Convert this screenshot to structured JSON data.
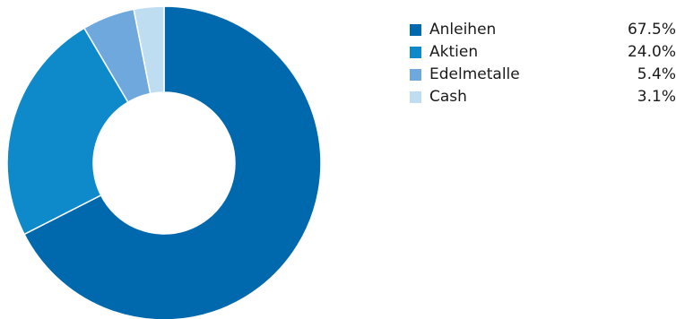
{
  "chart_data": {
    "type": "pie",
    "variant": "donut",
    "categories": [
      "Anleihen",
      "Aktien",
      "Edelmetalle",
      "Cash"
    ],
    "values": [
      67.5,
      24.0,
      5.4,
      3.1
    ],
    "value_labels": [
      "67.5%",
      "24.0%",
      "5.4%",
      "3.1%"
    ],
    "colors": [
      "#0068AD",
      "#0E8ACB",
      "#6FA8DC",
      "#BFDDF0"
    ],
    "legend_placement": "right",
    "title": ""
  }
}
